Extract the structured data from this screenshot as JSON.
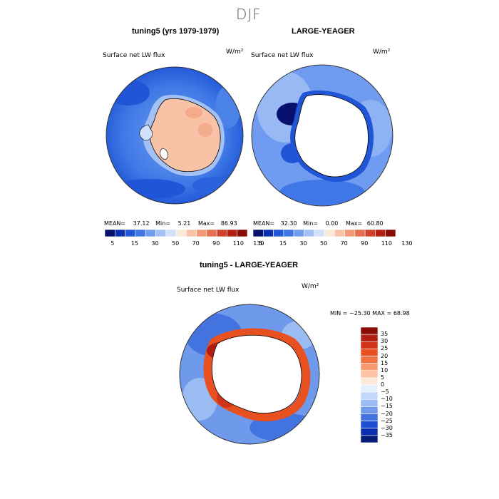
{
  "page": {
    "title": "DJF"
  },
  "panels": [
    {
      "id": "left",
      "header": "tuning5 (yrs 1979-1979)",
      "variable": "Surface net LW flux",
      "units": "W/m²",
      "stats": {
        "mean_label": "MEAN=",
        "mean": "37.12",
        "min_label": "Min=",
        "min": "5.21",
        "max_label": "Max=",
        "max": "86.93"
      }
    },
    {
      "id": "right",
      "header": "LARGE-YEAGER",
      "variable": "Surface net LW flux",
      "units": "W/m²",
      "stats": {
        "mean_label": "MEAN=",
        "mean": "32.30",
        "min_label": "Min=",
        "min": "0.00",
        "max_label": "Max=",
        "max": "60.80"
      }
    }
  ],
  "abs_colorbar": {
    "labels": [
      "5",
      "15",
      "30",
      "50",
      "70",
      "90",
      "110",
      "130"
    ],
    "colors": [
      "#08106e",
      "#0a2fb0",
      "#1f55d6",
      "#3f78e6",
      "#6f9cf0",
      "#a4c1f6",
      "#d2e1fb",
      "#fbe8dc",
      "#f7c2a6",
      "#f19a7a",
      "#e46e4e",
      "#cf4228",
      "#b11f12",
      "#8a0a05"
    ]
  },
  "diff_panel": {
    "header": "tuning5 - LARGE-YEAGER",
    "variable": "Surface net LW flux",
    "units": "W/m²",
    "minmax": "MIN = −25.30 MAX =  68.98"
  },
  "diff_colorbar": {
    "labels": [
      "35",
      "30",
      "25",
      "20",
      "15",
      "10",
      "5",
      "0",
      "−5",
      "−10",
      "−15",
      "−20",
      "−25",
      "−30",
      "−35"
    ],
    "colors": [
      "#8a0a05",
      "#b11f12",
      "#d0321a",
      "#e8501f",
      "#f27244",
      "#f7996e",
      "#fbc2a4",
      "#fde9dc",
      "#e4eefc",
      "#c2d7f8",
      "#9bbcf2",
      "#6f99ea",
      "#4373df",
      "#1d4fd0",
      "#0a2fae",
      "#061a7a"
    ]
  }
}
